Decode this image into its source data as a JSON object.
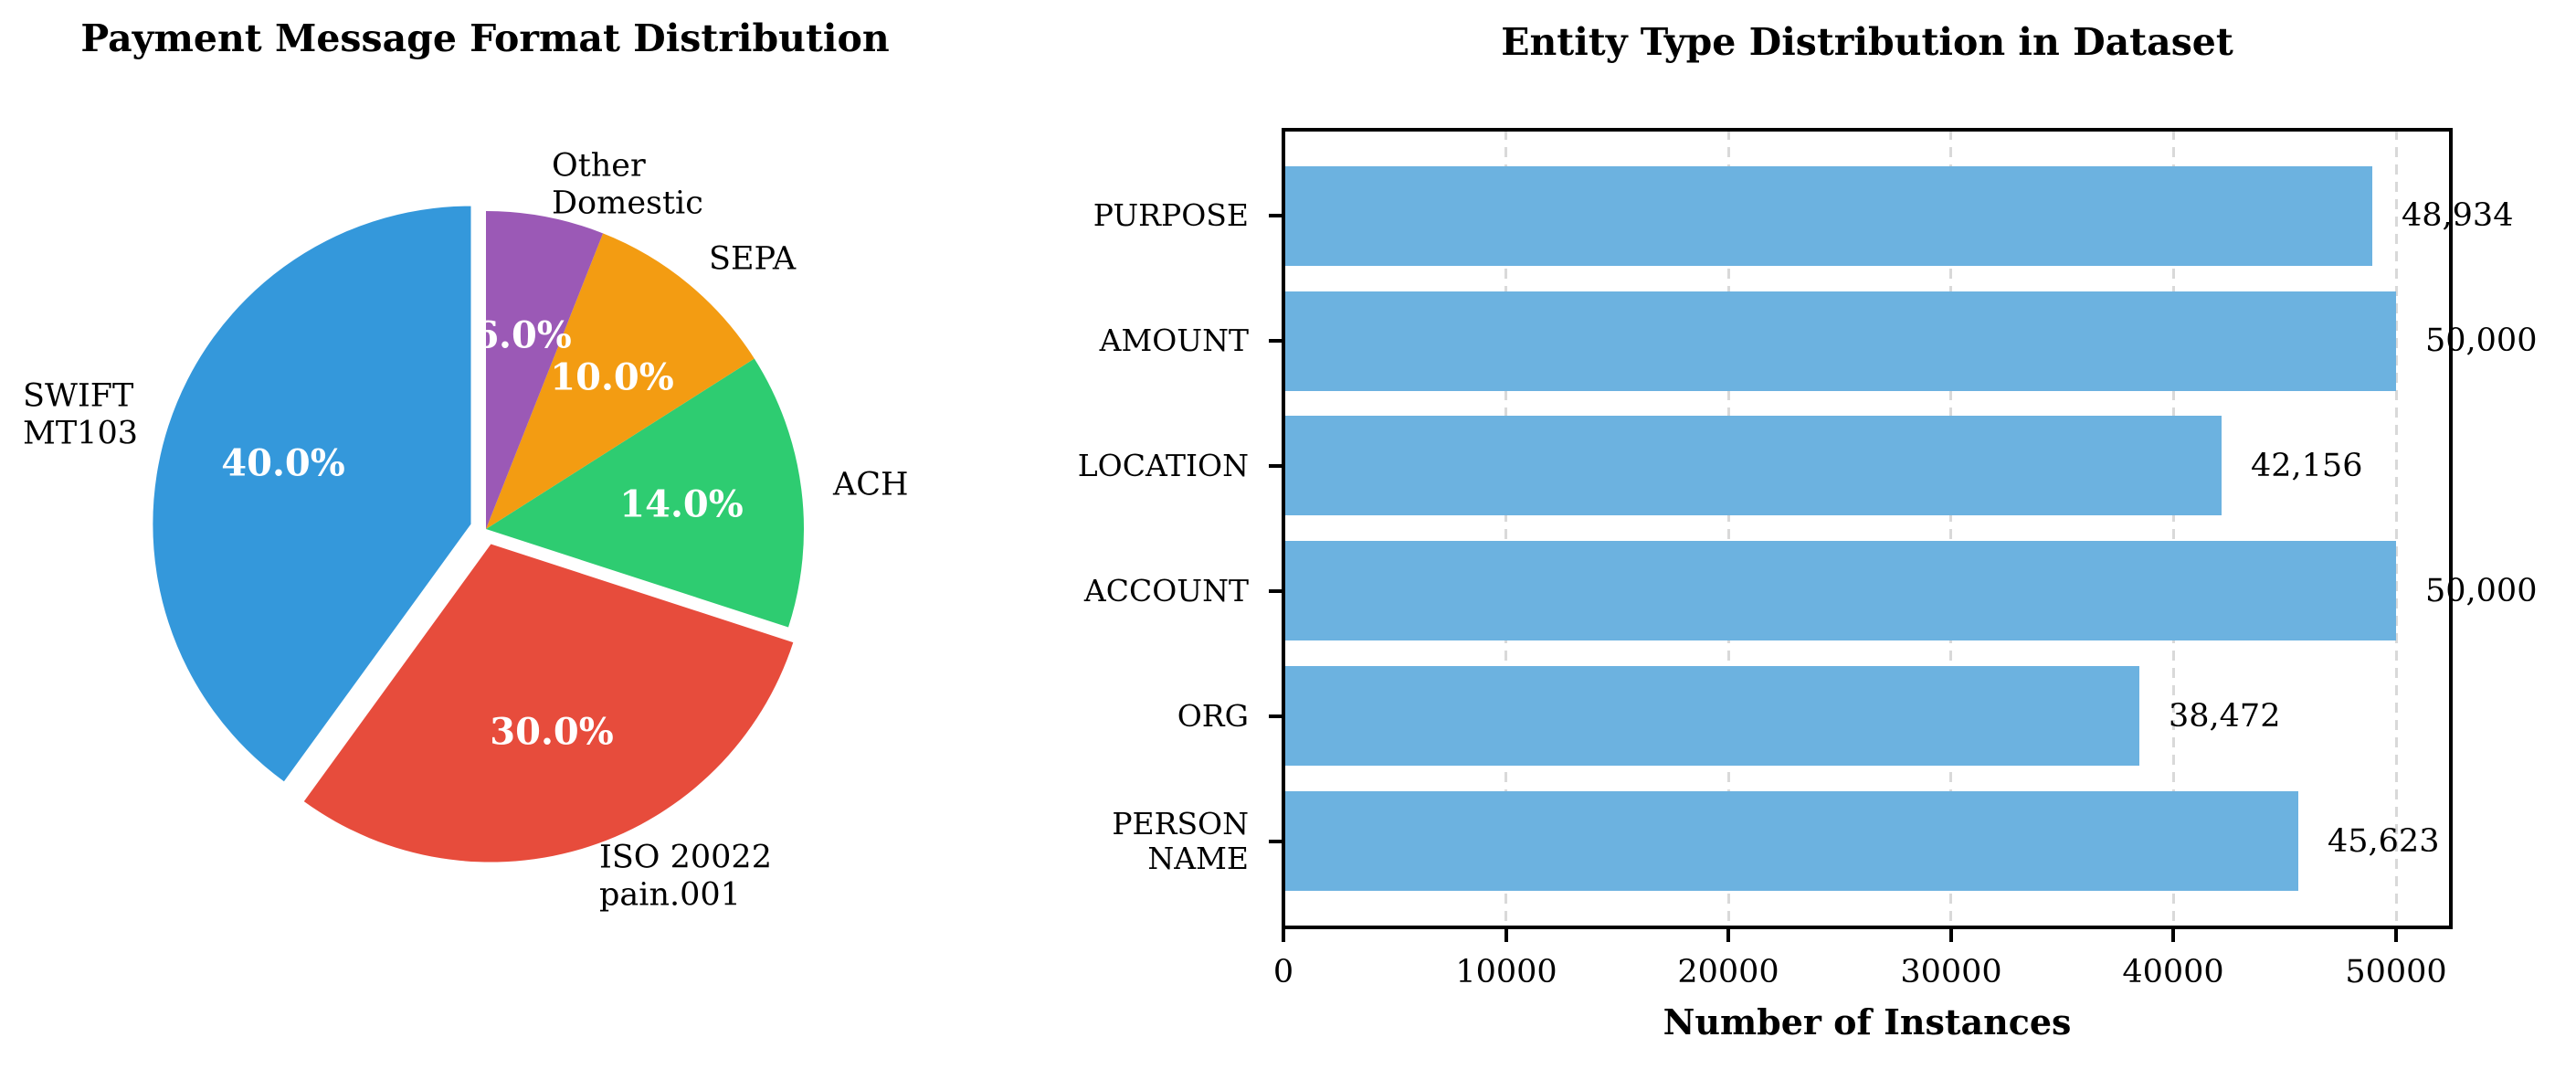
{
  "page": {
    "background": "#ffffff"
  },
  "chart_data": [
    {
      "type": "pie",
      "title": "Payment Message Format Distribution",
      "labels": [
        "SWIFT\nMT103",
        "ISO 20022\npain.001",
        "ACH",
        "SEPA",
        "Other\nDomestic"
      ],
      "values": [
        40.0,
        30.0,
        14.0,
        10.0,
        6.0
      ],
      "pct_labels": [
        "40.0%",
        "30.0%",
        "14.0%",
        "10.0%",
        "6.0%"
      ],
      "colors": [
        "#3498db",
        "#e74c3c",
        "#2ecc71",
        "#f39c12",
        "#9b59b6"
      ],
      "explode": [
        0.05,
        0.05,
        0,
        0,
        0
      ],
      "start_angle": 90,
      "counterclockwise": true,
      "pct_text_color": "#ffffff",
      "label_text_color": "#000000"
    },
    {
      "type": "bar",
      "orientation": "horizontal",
      "title": "Entity Type Distribution in Dataset",
      "xlabel": "Number of Instances",
      "categories": [
        "PURPOSE",
        "AMOUNT",
        "LOCATION",
        "ACCOUNT",
        "ORG",
        "PERSON\nNAME"
      ],
      "values": [
        48934,
        50000,
        42156,
        50000,
        38472,
        45623
      ],
      "value_labels": [
        "48,934",
        "50,000",
        "42,156",
        "50,000",
        "38,472",
        "45,623"
      ],
      "x_ticks": [
        0,
        10000,
        20000,
        30000,
        40000,
        50000
      ],
      "x_tick_labels": [
        "0",
        "10000",
        "20000",
        "30000",
        "40000",
        "50000"
      ],
      "xlim": [
        0,
        52500
      ],
      "bar_color": "#6cb2e0",
      "grid_color": "#d9d9d9",
      "grid_style": "dashed-vertical",
      "legend": null
    }
  ]
}
